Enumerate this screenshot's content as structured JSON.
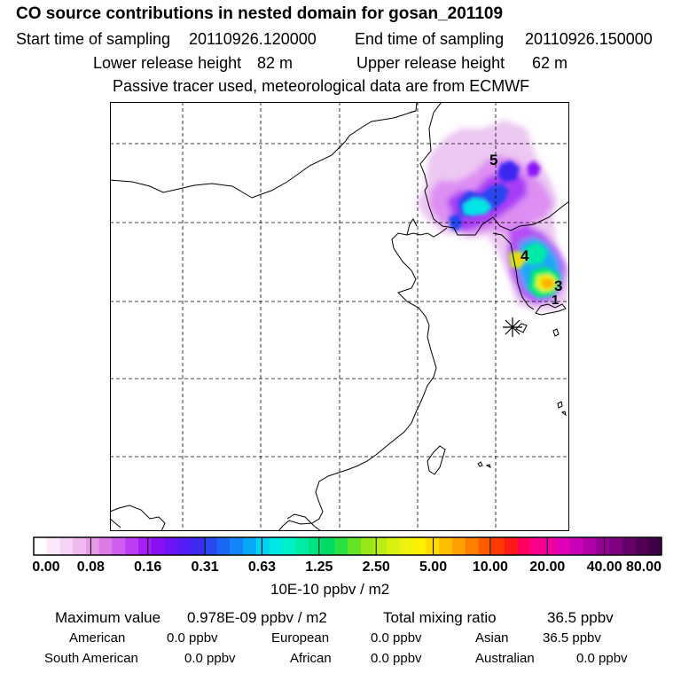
{
  "header": {
    "title": "CO  source contributions in nested domain for gosan_201109",
    "start_label": "Start time of sampling",
    "start_value": "20110926.120000",
    "end_label": "End time of sampling",
    "end_value": "20110926.150000",
    "lower_label": "Lower release height",
    "lower_value": "82 m",
    "upper_label": "Upper release height",
    "upper_value": "62 m",
    "note": "Passive tracer used, meteorological data are from ECMWF"
  },
  "map": {
    "markers": [
      "5",
      "4",
      "3",
      "1"
    ],
    "receptor_symbol": "✳"
  },
  "colorbar": {
    "ticks": [
      "0.00",
      "0.08",
      "0.16",
      "0.31",
      "0.63",
      "1.25",
      "2.50",
      "5.00",
      "10.00",
      "20.00",
      "40.00",
      "80.00"
    ],
    "unit": "10E-10 ppbv / m2",
    "colors": [
      "#ffffff",
      "#fce8fc",
      "#f7d2f7",
      "#f0b8f0",
      "#e89ae8",
      "#dc7ae6",
      "#cf5cf0",
      "#bd3cf6",
      "#a81ef8",
      "#8a10f8",
      "#7014f8",
      "#561cf6",
      "#3c2af0",
      "#2848f0",
      "#1c66f4",
      "#1286f8",
      "#08a8f8",
      "#00d0f4",
      "#00e8e4",
      "#00f0c8",
      "#00eca6",
      "#00e484",
      "#00dc62",
      "#2ce040",
      "#64e426",
      "#96e818",
      "#bcec14",
      "#d8f010",
      "#eef20c",
      "#fff000",
      "#ffd800",
      "#ffbe00",
      "#ffa000",
      "#ff8000",
      "#ff5c00",
      "#ff3a00",
      "#ff1818",
      "#ff0060",
      "#f8008a",
      "#f000a4",
      "#e000b6",
      "#c800b8",
      "#b000ac",
      "#960098",
      "#7c0080",
      "#66006a",
      "#520058",
      "#3e0046"
    ]
  },
  "summary": {
    "max_label": "Maximum value",
    "max_value": "0.978E-09 ppbv / m2",
    "total_label": "Total mixing ratio",
    "total_value": "36.5 ppbv",
    "regions": [
      {
        "name": "American",
        "value": "0.0 ppbv"
      },
      {
        "name": "European",
        "value": "0.0 ppbv"
      },
      {
        "name": "Asian",
        "value": "36.5 ppbv"
      },
      {
        "name": "South American",
        "value": "0.0 ppbv"
      },
      {
        "name": "African",
        "value": "0.0 ppbv"
      },
      {
        "name": "Australian",
        "value": "0.0 ppbv"
      }
    ]
  }
}
